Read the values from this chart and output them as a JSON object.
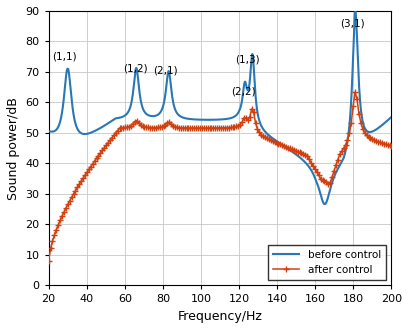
{
  "xlabel": "Frequency/Hz",
  "ylabel": "Sound power/dB",
  "xlim": [
    20,
    200
  ],
  "ylim": [
    0,
    90
  ],
  "yticks": [
    0,
    10,
    20,
    30,
    40,
    50,
    60,
    70,
    80,
    90
  ],
  "xticks": [
    20,
    40,
    60,
    80,
    100,
    120,
    140,
    160,
    180,
    200
  ],
  "before_color": "#2878b5",
  "after_color": "#d04010",
  "legend_loc": "lower right",
  "background_color": "#ffffff",
  "grid_color": "#c8c8c8",
  "annotations": [
    {
      "label": "(1,1)",
      "xtext": 27,
      "ytext": 75
    },
    {
      "label": "(1,2)",
      "xtext": 61,
      "ytext": 70
    },
    {
      "label": "(2,1)",
      "xtext": 76,
      "ytext": 69.5
    },
    {
      "label": "(2,2)",
      "xtext": 118,
      "ytext": 64
    },
    {
      "label": "(1,3)",
      "xtext": 121,
      "ytext": 74.5
    },
    {
      "label": "(3,1)",
      "xtext": 174,
      "ytext": 85.5
    }
  ]
}
